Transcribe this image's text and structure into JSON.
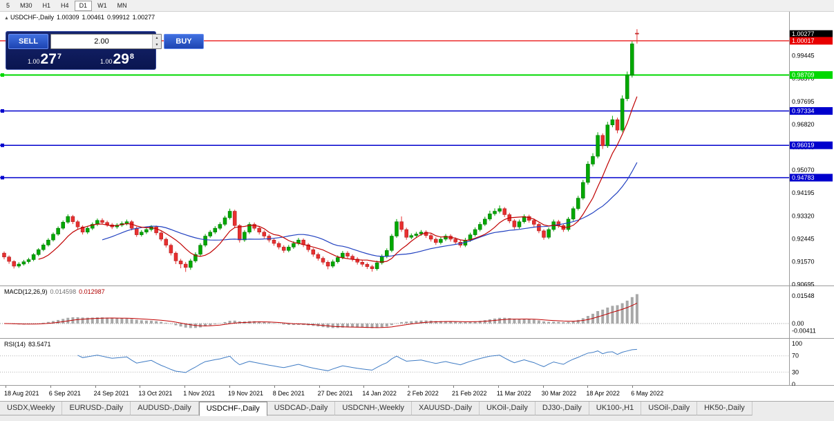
{
  "toolbar": {
    "timeframes": [
      "5",
      "M30",
      "H1",
      "H4",
      "D1",
      "W1",
      "MN"
    ],
    "active": "D1"
  },
  "chart_header": {
    "icon": "▲",
    "title": "USDCHF-,Daily",
    "open": "1.00309",
    "high": "1.00461",
    "low": "0.99912",
    "close": "1.00277"
  },
  "one_click": {
    "sell_label": "SELL",
    "buy_label": "BUY",
    "volume": "2.00",
    "up_arrow": "▲",
    "down_arrow": "▼",
    "sell_price": {
      "small": "1.00",
      "big": "27",
      "sup": "7"
    },
    "buy_price": {
      "small": "1.00",
      "big": "29",
      "sup": "8"
    }
  },
  "price_axis": {
    "labels": [
      "0.99445",
      "0.98570",
      "0.97695",
      "0.96820",
      "0.95945",
      "0.95070",
      "0.94195",
      "0.93320",
      "0.92445",
      "0.91570",
      "0.90695"
    ],
    "current": {
      "text": "1.00277",
      "box_color": "#000000"
    }
  },
  "main_chart": {
    "lines": [
      {
        "price": 1.00017,
        "label": "1.00017",
        "color": "#e80000",
        "width": 1.2,
        "handle": false
      },
      {
        "price": 0.98709,
        "label": "0.98709",
        "color": "#00d800",
        "width": 2,
        "handle": true
      },
      {
        "price": 0.97334,
        "label": "0.97334",
        "color": "#0000cd",
        "width": 1.5,
        "handle": true
      },
      {
        "price": 0.96019,
        "label": "0.96019",
        "color": "#0000cd",
        "width": 1.5,
        "handle": true
      },
      {
        "price": 0.94783,
        "label": "0.94783",
        "color": "#0000cd",
        "width": 1.5,
        "handle": true
      }
    ],
    "bull_color": "#00a800",
    "bull_stroke": "#006800",
    "bear_color": "#e83030",
    "bear_stroke": "#a01818",
    "ma_fast_color": "#c00000",
    "ma_slow_color": "#2040c0"
  },
  "macd": {
    "label": "MACD(12,26,9)",
    "value1": "0.014598",
    "value2": "0.012987",
    "axis_max": {
      "value": 0.01548,
      "text": "0.01548"
    },
    "axis_zero": {
      "value": 0,
      "text": "0.00"
    },
    "axis_min": {
      "value": -0.00411,
      "text": "-0.00411"
    },
    "fast": 12,
    "slow": 26,
    "signal": 9,
    "histogram_color": "#a8a8a8",
    "signal_color": "#c00000"
  },
  "rsi": {
    "label": "RSI(14)",
    "value": "83.5471",
    "period": 14,
    "axis": [
      "100",
      "70",
      "30",
      "0"
    ],
    "levels": [
      70,
      30
    ],
    "line_color": "#3e7bc4"
  },
  "tabs": {
    "active_index": 3,
    "items": [
      "USDX,Weekly",
      "EURUSD-,Daily",
      "AUDUSD-,Daily",
      "USDCHF-,Daily",
      "USDCAD-,Daily",
      "USDCNH-,Weekly",
      "XAUUSD-,Daily",
      "UKOil-,Daily",
      "DJ30-,Daily",
      "UK100-,H1",
      "USOil-,Daily",
      "HK50-,Daily"
    ]
  },
  "chart_data": {
    "type": "candlestick",
    "title": "USDCHF-,Daily",
    "x_labels": [
      "18 Aug 2021",
      "6 Sep 2021",
      "24 Sep 2021",
      "13 Oct 2021",
      "1 Nov 2021",
      "19 Nov 2021",
      "8 Dec 2021",
      "27 Dec 2021",
      "14 Jan 2022",
      "2 Feb 2022",
      "21 Feb 2022",
      "11 Mar 2022",
      "30 Mar 2022",
      "18 Apr 2022",
      "6 May 2022"
    ],
    "y_range": [
      0.906,
      1.008
    ],
    "candles": [
      [
        0.919,
        0.9196,
        0.9166,
        0.9175
      ],
      [
        0.9175,
        0.9181,
        0.9149,
        0.9158
      ],
      [
        0.9158,
        0.9163,
        0.9131,
        0.914
      ],
      [
        0.914,
        0.9155,
        0.9133,
        0.9148
      ],
      [
        0.9148,
        0.9164,
        0.9142,
        0.9157
      ],
      [
        0.9157,
        0.9172,
        0.915,
        0.9165
      ],
      [
        0.9165,
        0.919,
        0.9159,
        0.9184
      ],
      [
        0.9184,
        0.9209,
        0.9178,
        0.9203
      ],
      [
        0.9203,
        0.9228,
        0.9197,
        0.9221
      ],
      [
        0.9221,
        0.9247,
        0.9215,
        0.924
      ],
      [
        0.924,
        0.9269,
        0.9234,
        0.9262
      ],
      [
        0.9262,
        0.9292,
        0.9256,
        0.9285
      ],
      [
        0.9285,
        0.9315,
        0.9279,
        0.9308
      ],
      [
        0.9308,
        0.9338,
        0.9302,
        0.933
      ],
      [
        0.933,
        0.9336,
        0.9301,
        0.931
      ],
      [
        0.931,
        0.9316,
        0.9281,
        0.929
      ],
      [
        0.929,
        0.9296,
        0.9261,
        0.927
      ],
      [
        0.927,
        0.9292,
        0.9263,
        0.9285
      ],
      [
        0.9285,
        0.9307,
        0.9278,
        0.93
      ],
      [
        0.93,
        0.9322,
        0.9293,
        0.9315
      ],
      [
        0.9315,
        0.9323,
        0.9299,
        0.9307
      ],
      [
        0.9307,
        0.9314,
        0.929,
        0.9298
      ],
      [
        0.9298,
        0.9305,
        0.9282,
        0.929
      ],
      [
        0.929,
        0.9304,
        0.9283,
        0.9297
      ],
      [
        0.9297,
        0.9311,
        0.929,
        0.9303
      ],
      [
        0.9303,
        0.9318,
        0.9296,
        0.931
      ],
      [
        0.931,
        0.9316,
        0.9277,
        0.9285
      ],
      [
        0.9285,
        0.9291,
        0.9252,
        0.926
      ],
      [
        0.926,
        0.9278,
        0.9253,
        0.927
      ],
      [
        0.927,
        0.9288,
        0.9263,
        0.928
      ],
      [
        0.928,
        0.9297,
        0.9273,
        0.929
      ],
      [
        0.929,
        0.9295,
        0.9258,
        0.9267
      ],
      [
        0.9267,
        0.9273,
        0.9235,
        0.9243
      ],
      [
        0.9243,
        0.9249,
        0.9211,
        0.922
      ],
      [
        0.922,
        0.9226,
        0.9181,
        0.919
      ],
      [
        0.919,
        0.9196,
        0.9148,
        0.916
      ],
      [
        0.916,
        0.9168,
        0.9132,
        0.9148
      ],
      [
        0.9148,
        0.9156,
        0.9118,
        0.9135
      ],
      [
        0.9135,
        0.9168,
        0.9126,
        0.916
      ],
      [
        0.916,
        0.9193,
        0.9153,
        0.9185
      ],
      [
        0.9185,
        0.9228,
        0.9178,
        0.922
      ],
      [
        0.922,
        0.9263,
        0.9213,
        0.9255
      ],
      [
        0.9255,
        0.9278,
        0.9248,
        0.927
      ],
      [
        0.927,
        0.9293,
        0.9263,
        0.9285
      ],
      [
        0.9285,
        0.9308,
        0.9278,
        0.93
      ],
      [
        0.93,
        0.9333,
        0.9293,
        0.9325
      ],
      [
        0.9325,
        0.936,
        0.9318,
        0.935
      ],
      [
        0.935,
        0.9356,
        0.9286,
        0.9295
      ],
      [
        0.9295,
        0.9301,
        0.923,
        0.924
      ],
      [
        0.924,
        0.9278,
        0.9233,
        0.927
      ],
      [
        0.927,
        0.9308,
        0.9263,
        0.93
      ],
      [
        0.93,
        0.9307,
        0.9276,
        0.9285
      ],
      [
        0.9285,
        0.9292,
        0.9261,
        0.927
      ],
      [
        0.927,
        0.9277,
        0.9246,
        0.9255
      ],
      [
        0.9255,
        0.9262,
        0.9231,
        0.924
      ],
      [
        0.924,
        0.9247,
        0.9218,
        0.9227
      ],
      [
        0.9227,
        0.9234,
        0.9204,
        0.9213
      ],
      [
        0.9213,
        0.922,
        0.9191,
        0.92
      ],
      [
        0.92,
        0.9221,
        0.9193,
        0.9213
      ],
      [
        0.9213,
        0.9235,
        0.9206,
        0.9227
      ],
      [
        0.9227,
        0.9248,
        0.922,
        0.924
      ],
      [
        0.924,
        0.9246,
        0.9213,
        0.9222
      ],
      [
        0.9222,
        0.9228,
        0.9194,
        0.9203
      ],
      [
        0.9203,
        0.9209,
        0.9176,
        0.9185
      ],
      [
        0.9185,
        0.9192,
        0.9161,
        0.917
      ],
      [
        0.917,
        0.9177,
        0.9146,
        0.9155
      ],
      [
        0.9155,
        0.9162,
        0.9128,
        0.914
      ],
      [
        0.914,
        0.9165,
        0.9133,
        0.9157
      ],
      [
        0.9157,
        0.9181,
        0.915,
        0.9173
      ],
      [
        0.9173,
        0.9198,
        0.9166,
        0.919
      ],
      [
        0.919,
        0.9197,
        0.9169,
        0.9178
      ],
      [
        0.9178,
        0.9185,
        0.9158,
        0.9167
      ],
      [
        0.9167,
        0.9174,
        0.9146,
        0.9155
      ],
      [
        0.9155,
        0.9163,
        0.9138,
        0.9147
      ],
      [
        0.9147,
        0.9154,
        0.9129,
        0.9138
      ],
      [
        0.9138,
        0.9145,
        0.9119,
        0.913
      ],
      [
        0.913,
        0.9161,
        0.9123,
        0.9153
      ],
      [
        0.9153,
        0.9185,
        0.9146,
        0.9177
      ],
      [
        0.9177,
        0.9208,
        0.917,
        0.92
      ],
      [
        0.92,
        0.9263,
        0.9193,
        0.9255
      ],
      [
        0.9255,
        0.932,
        0.9248,
        0.931
      ],
      [
        0.931,
        0.933,
        0.9271,
        0.928
      ],
      [
        0.928,
        0.9287,
        0.9241,
        0.925
      ],
      [
        0.925,
        0.9265,
        0.9243,
        0.9257
      ],
      [
        0.9257,
        0.9271,
        0.925,
        0.9263
      ],
      [
        0.9263,
        0.9278,
        0.9256,
        0.927
      ],
      [
        0.927,
        0.9277,
        0.9248,
        0.9257
      ],
      [
        0.9257,
        0.9264,
        0.9234,
        0.9243
      ],
      [
        0.9243,
        0.925,
        0.9221,
        0.923
      ],
      [
        0.923,
        0.9251,
        0.9223,
        0.9243
      ],
      [
        0.9243,
        0.9263,
        0.9236,
        0.9255
      ],
      [
        0.9255,
        0.9262,
        0.9234,
        0.9243
      ],
      [
        0.9243,
        0.925,
        0.9223,
        0.9232
      ],
      [
        0.9232,
        0.9239,
        0.9211,
        0.922
      ],
      [
        0.922,
        0.9248,
        0.9213,
        0.924
      ],
      [
        0.924,
        0.9268,
        0.9233,
        0.926
      ],
      [
        0.926,
        0.9288,
        0.9253,
        0.928
      ],
      [
        0.928,
        0.9309,
        0.9273,
        0.93
      ],
      [
        0.93,
        0.9329,
        0.9293,
        0.932
      ],
      [
        0.932,
        0.9352,
        0.9313,
        0.934
      ],
      [
        0.934,
        0.9361,
        0.9332,
        0.935
      ],
      [
        0.935,
        0.9372,
        0.9342,
        0.936
      ],
      [
        0.936,
        0.9366,
        0.9328,
        0.9337
      ],
      [
        0.9337,
        0.9344,
        0.9304,
        0.9313
      ],
      [
        0.9313,
        0.932,
        0.9281,
        0.929
      ],
      [
        0.929,
        0.9318,
        0.9283,
        0.931
      ],
      [
        0.931,
        0.9338,
        0.9303,
        0.933
      ],
      [
        0.933,
        0.9337,
        0.9306,
        0.9315
      ],
      [
        0.9315,
        0.9322,
        0.9291,
        0.93
      ],
      [
        0.93,
        0.9306,
        0.9266,
        0.9275
      ],
      [
        0.9275,
        0.9281,
        0.9241,
        0.925
      ],
      [
        0.925,
        0.9288,
        0.9243,
        0.928
      ],
      [
        0.928,
        0.9318,
        0.9273,
        0.931
      ],
      [
        0.931,
        0.9317,
        0.9286,
        0.9295
      ],
      [
        0.9295,
        0.9302,
        0.9271,
        0.928
      ],
      [
        0.928,
        0.9328,
        0.9273,
        0.932
      ],
      [
        0.932,
        0.9368,
        0.9313,
        0.936
      ],
      [
        0.936,
        0.9409,
        0.9353,
        0.94
      ],
      [
        0.94,
        0.947,
        0.9393,
        0.946
      ],
      [
        0.946,
        0.9541,
        0.9452,
        0.953
      ],
      [
        0.953,
        0.9572,
        0.9521,
        0.956
      ],
      [
        0.956,
        0.9652,
        0.9552,
        0.964
      ],
      [
        0.964,
        0.9648,
        0.9588,
        0.96
      ],
      [
        0.96,
        0.9692,
        0.9592,
        0.968
      ],
      [
        0.968,
        0.9715,
        0.9671,
        0.97
      ],
      [
        0.97,
        0.9708,
        0.9648,
        0.966
      ],
      [
        0.966,
        0.9793,
        0.9652,
        0.978
      ],
      [
        0.978,
        0.9884,
        0.9771,
        0.987
      ],
      [
        0.987,
        0.9999,
        0.9861,
        0.999
      ],
      [
        1.00309,
        1.00461,
        0.99912,
        1.00277
      ]
    ]
  }
}
